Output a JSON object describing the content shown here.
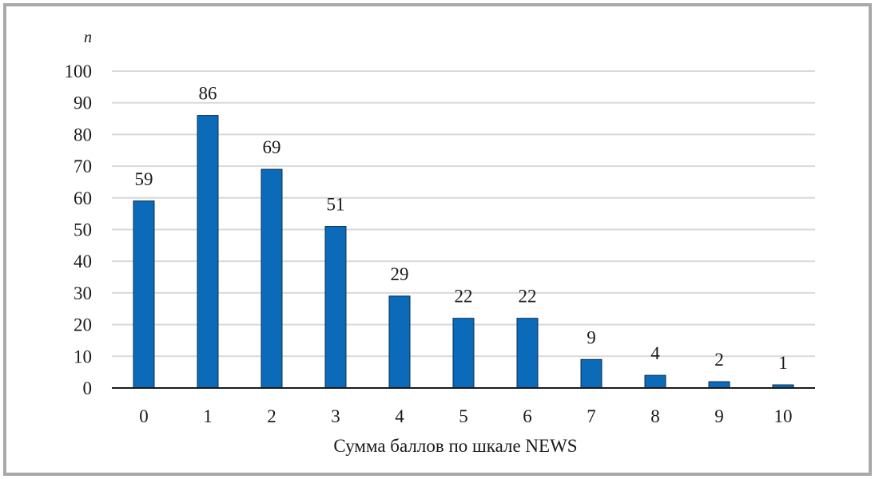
{
  "chart_data": {
    "type": "bar",
    "categories": [
      "0",
      "1",
      "2",
      "3",
      "4",
      "5",
      "6",
      "7",
      "8",
      "9",
      "10"
    ],
    "values": [
      59,
      86,
      69,
      51,
      29,
      22,
      22,
      9,
      4,
      2,
      1
    ],
    "title": "",
    "xlabel": "Сумма баллов по шкале NEWS",
    "ylabel": "n",
    "ylim": [
      0,
      100
    ],
    "yticks": [
      0,
      10,
      20,
      30,
      40,
      50,
      60,
      70,
      80,
      90,
      100
    ],
    "grid": true,
    "data_labels": true,
    "bar_color": "#0b6bb8",
    "grid_color": "#d9d9d9"
  }
}
